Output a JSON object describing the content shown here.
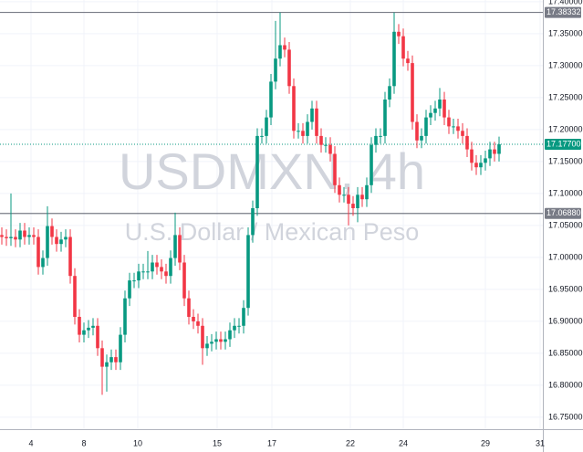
{
  "chart_data": {
    "type": "candlestick",
    "title": "USDMXN, 4h",
    "subtitle": "U.S. Dollar / Mexican Peso",
    "up_color": "#089981",
    "down_color": "#f23645",
    "grid": true,
    "open": [
      17.035,
      17.032,
      17.03,
      17.032,
      17.028,
      17.042,
      17.032,
      17.035,
      17.032,
      16.985,
      16.999,
      17.049,
      17.032,
      17.021,
      17.028,
      17.032,
      16.971,
      16.907,
      16.879,
      16.886,
      16.89,
      16.893,
      16.858,
      16.829,
      16.836,
      16.844,
      16.836,
      16.879,
      16.936,
      16.964,
      16.964,
      16.978,
      16.978,
      16.978,
      16.992,
      16.985,
      16.978,
      16.971,
      16.999,
      17.035,
      16.992,
      16.936,
      16.907,
      16.9,
      16.893,
      16.858,
      16.865,
      16.868,
      16.872,
      16.868,
      16.872,
      16.886,
      16.893,
      16.893,
      16.921,
      17.035,
      17.077,
      17.19,
      17.19,
      17.219,
      17.275,
      17.311,
      17.332,
      17.325,
      17.268,
      17.198,
      17.198,
      17.19,
      17.212,
      17.233,
      17.19,
      17.176,
      17.176,
      17.162,
      17.113,
      17.098,
      17.098,
      17.084,
      17.077,
      17.098,
      17.091,
      17.113,
      17.176,
      17.19,
      17.19,
      17.247,
      17.268,
      17.353,
      17.346,
      17.311,
      17.304,
      17.212,
      17.183,
      17.19,
      17.219,
      17.226,
      17.233,
      17.247,
      17.219,
      17.205,
      17.205,
      17.198,
      17.19,
      17.169,
      17.148,
      17.141,
      17.148,
      17.155,
      17.169,
      17.162
    ],
    "high": [
      17.047,
      17.044,
      17.1,
      17.044,
      17.054,
      17.054,
      17.047,
      17.047,
      17.044,
      17.011,
      17.08,
      17.061,
      17.044,
      17.04,
      17.044,
      17.044,
      16.983,
      16.919,
      16.898,
      16.902,
      16.905,
      16.905,
      16.87,
      16.848,
      16.856,
      16.856,
      16.891,
      16.948,
      16.976,
      16.976,
      16.99,
      16.99,
      17.01,
      17.004,
      17.004,
      16.997,
      16.99,
      17.011,
      17.07,
      17.047,
      17.004,
      16.948,
      16.919,
      16.912,
      16.905,
      16.877,
      16.88,
      16.884,
      16.884,
      16.884,
      16.898,
      16.905,
      16.905,
      16.933,
      17.047,
      17.089,
      17.202,
      17.202,
      17.231,
      17.287,
      17.37,
      17.383,
      17.344,
      17.337,
      17.28,
      17.21,
      17.21,
      17.224,
      17.245,
      17.245,
      17.202,
      17.188,
      17.188,
      17.174,
      17.125,
      17.11,
      17.11,
      17.096,
      17.11,
      17.11,
      17.125,
      17.188,
      17.202,
      17.202,
      17.259,
      17.28,
      17.383,
      17.365,
      17.358,
      17.323,
      17.316,
      17.224,
      17.202,
      17.231,
      17.238,
      17.245,
      17.265,
      17.259,
      17.231,
      17.217,
      17.217,
      17.21,
      17.202,
      17.181,
      17.16,
      17.16,
      17.167,
      17.181,
      17.181,
      17.189
    ],
    "low": [
      17.02,
      17.018,
      17.018,
      17.016,
      17.016,
      17.02,
      17.02,
      17.02,
      16.973,
      16.973,
      16.987,
      17.02,
      17.009,
      17.009,
      17.016,
      16.959,
      16.895,
      16.867,
      16.867,
      16.874,
      16.878,
      16.846,
      16.785,
      16.79,
      16.824,
      16.824,
      16.824,
      16.867,
      16.924,
      16.952,
      16.952,
      16.966,
      16.966,
      16.966,
      16.973,
      16.966,
      16.959,
      16.959,
      16.987,
      16.98,
      16.924,
      16.895,
      16.888,
      16.881,
      16.832,
      16.846,
      16.853,
      16.856,
      16.856,
      16.856,
      16.86,
      16.874,
      16.881,
      16.881,
      16.909,
      17.023,
      17.065,
      17.178,
      17.178,
      17.207,
      17.263,
      17.299,
      17.313,
      17.256,
      17.186,
      17.186,
      17.178,
      17.178,
      17.2,
      17.178,
      17.164,
      17.164,
      17.15,
      17.101,
      17.086,
      17.086,
      17.05,
      17.065,
      17.055,
      17.079,
      17.079,
      17.101,
      17.164,
      17.178,
      17.178,
      17.235,
      17.256,
      17.334,
      17.299,
      17.292,
      17.2,
      17.171,
      17.171,
      17.178,
      17.207,
      17.214,
      17.221,
      17.207,
      17.193,
      17.193,
      17.186,
      17.178,
      17.157,
      17.136,
      17.129,
      17.129,
      17.136,
      17.143,
      17.15,
      17.15
    ],
    "close": [
      17.032,
      17.03,
      17.032,
      17.028,
      17.042,
      17.032,
      17.035,
      17.032,
      16.985,
      16.999,
      17.049,
      17.032,
      17.021,
      17.028,
      17.032,
      16.971,
      16.907,
      16.879,
      16.886,
      16.89,
      16.893,
      16.858,
      16.829,
      16.836,
      16.844,
      16.836,
      16.879,
      16.936,
      16.964,
      16.964,
      16.978,
      16.978,
      16.978,
      16.992,
      16.985,
      16.978,
      16.971,
      16.999,
      17.035,
      16.992,
      16.936,
      16.907,
      16.9,
      16.893,
      16.858,
      16.865,
      16.868,
      16.872,
      16.868,
      16.872,
      16.886,
      16.893,
      16.893,
      16.921,
      17.035,
      17.077,
      17.19,
      17.19,
      17.219,
      17.275,
      17.311,
      17.332,
      17.325,
      17.268,
      17.198,
      17.198,
      17.19,
      17.212,
      17.233,
      17.19,
      17.176,
      17.176,
      17.162,
      17.113,
      17.098,
      17.098,
      17.084,
      17.077,
      17.098,
      17.091,
      17.113,
      17.176,
      17.19,
      17.19,
      17.247,
      17.268,
      17.353,
      17.346,
      17.311,
      17.304,
      17.212,
      17.183,
      17.19,
      17.219,
      17.226,
      17.233,
      17.247,
      17.219,
      17.205,
      17.205,
      17.198,
      17.19,
      17.169,
      17.148,
      17.141,
      17.148,
      17.155,
      17.169,
      17.162,
      17.177
    ],
    "xlim": [
      -0.4,
      118.6
    ],
    "xticks": [
      {
        "value": 6.4,
        "label": "4"
      },
      {
        "value": 18,
        "label": "8"
      },
      {
        "value": 29.8,
        "label": "10"
      },
      {
        "value": 47.2,
        "label": "15"
      },
      {
        "value": 59.2,
        "label": "17"
      },
      {
        "value": 76.4,
        "label": "22"
      },
      {
        "value": 88,
        "label": "24"
      },
      {
        "value": 106,
        "label": "29"
      },
      {
        "value": 118,
        "label": "31"
      }
    ],
    "ylim": [
      16.7313,
      17.4027
    ],
    "yticks": [
      {
        "value": 16.75,
        "label": "16.75000"
      },
      {
        "value": 16.8,
        "label": "16.80000"
      },
      {
        "value": 16.85,
        "label": "16.85000"
      },
      {
        "value": 16.9,
        "label": "16.90000"
      },
      {
        "value": 16.95,
        "label": "16.95000"
      },
      {
        "value": 17.0,
        "label": "17.00000"
      },
      {
        "value": 17.05,
        "label": "17.05000"
      },
      {
        "value": 17.1,
        "label": "17.10000"
      },
      {
        "value": 17.15,
        "label": "17.15000"
      },
      {
        "value": 17.2,
        "label": "17.20000"
      },
      {
        "value": 17.25,
        "label": "17.25000"
      },
      {
        "value": 17.3,
        "label": "17.30000"
      },
      {
        "value": 17.35,
        "label": "17.35000"
      },
      {
        "value": 17.4,
        "label": "17.40000"
      }
    ],
    "horizontal_lines": [
      {
        "value": 17.38332,
        "label": "17.38332"
      },
      {
        "value": 17.0688,
        "label": "17.06880"
      }
    ],
    "last_price": {
      "value": 17.177,
      "label": "17.17700"
    }
  }
}
